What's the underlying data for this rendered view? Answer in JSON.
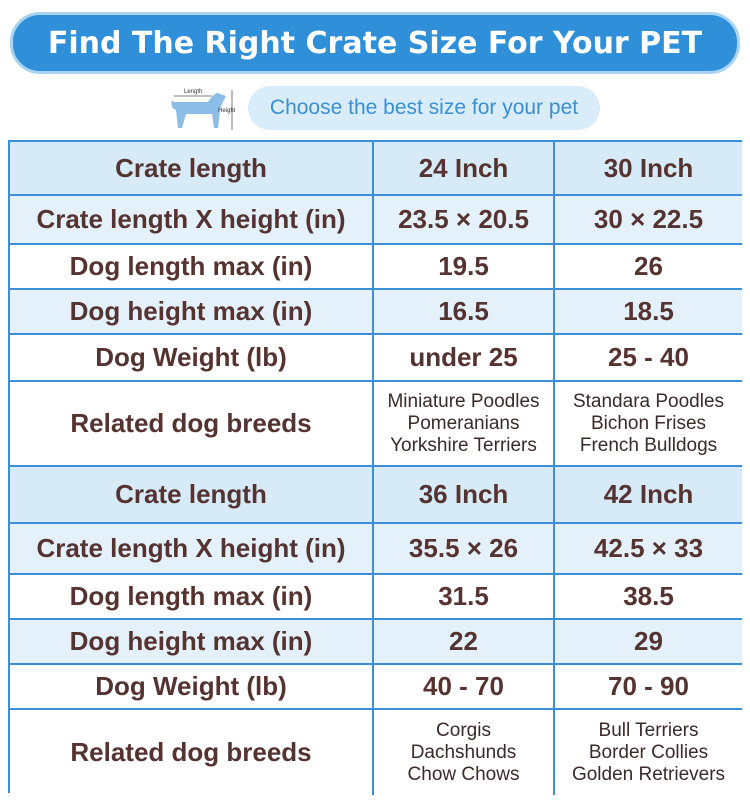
{
  "header": {
    "title": "Find The Right Crate Size For Your PET",
    "subtitle": "Choose the best size for your pet",
    "icon_labels": [
      "Length",
      "Height"
    ]
  },
  "table": {
    "rows": [
      [
        "Crate length",
        "24 Inch",
        "30 Inch"
      ],
      [
        "Crate length X height (in)",
        "23.5 × 20.5",
        "30 × 22.5"
      ],
      [
        "Dog length max (in)",
        "19.5",
        "26"
      ],
      [
        "Dog height max (in)",
        "16.5",
        "18.5"
      ],
      [
        "Dog Weight (lb)",
        "under 25",
        "25 - 40"
      ],
      [
        "Related dog breeds",
        [
          "Miniature Poodles",
          "Pomeranians",
          "Yorkshire Terriers"
        ],
        [
          "Standara Poodles",
          "Bichon Frises",
          "French Bulldogs"
        ]
      ],
      [
        "Crate length",
        "36 Inch",
        "42 Inch"
      ],
      [
        "Crate length X height (in)",
        "35.5 × 26",
        "42.5 × 33"
      ],
      [
        "Dog length max (in)",
        "31.5",
        "38.5"
      ],
      [
        "Dog height max (in)",
        "22",
        "29"
      ],
      [
        "Dog Weight (lb)",
        "40 - 70",
        "70 - 90"
      ],
      [
        "Related dog breeds",
        [
          "Corgis",
          "Dachshunds",
          "Chow Chows"
        ],
        [
          "Bull Terriers",
          "Border Collies",
          "Golden Retrievers"
        ]
      ]
    ]
  }
}
